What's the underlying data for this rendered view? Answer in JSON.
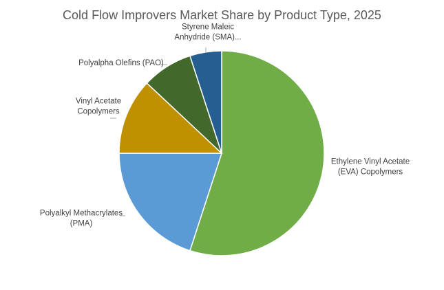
{
  "chart_data": {
    "type": "pie",
    "title": "Cold Flow Improvers Market Share by Product Type, 2025",
    "slices": [
      {
        "label": "Ethylene Vinyl Acetate (EVA) Copolymers",
        "value": 55,
        "color": "#70ad47"
      },
      {
        "label": "Polyalkyl Methacrylates (PMA)",
        "value": 20,
        "color": "#5b9bd5"
      },
      {
        "label": "Vinyl Acetate Copolymers",
        "value": 12,
        "color": "#bf9000"
      },
      {
        "label": "Polyalpha Olefins (PAO)",
        "value": 8,
        "color": "#43682b"
      },
      {
        "label": "Styrene Maleic Anhydride (SMA)...",
        "value": 5,
        "color": "#255e91"
      }
    ],
    "legend": "none"
  }
}
